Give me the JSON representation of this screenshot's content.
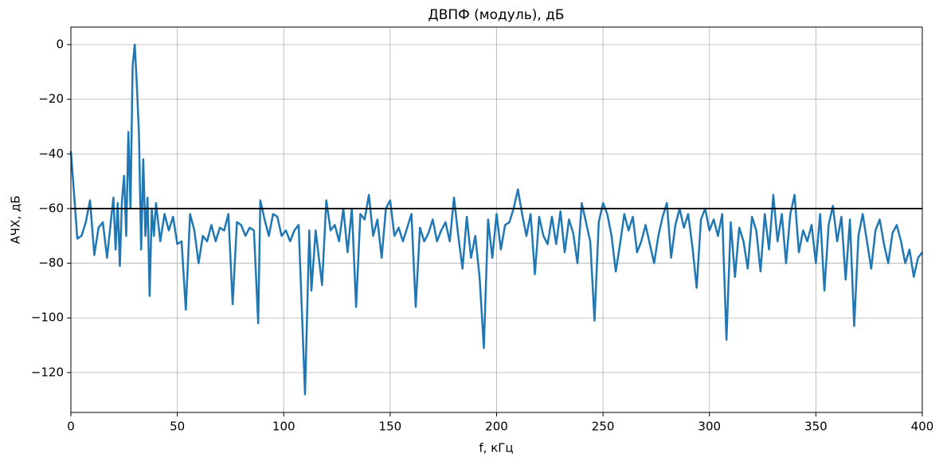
{
  "chart_data": {
    "type": "line",
    "title": "ДВПФ (модуль), дБ",
    "xlabel": "f, кГц",
    "ylabel": "АЧХ, дБ",
    "x": [
      0,
      2,
      3,
      5,
      7,
      9,
      11,
      13,
      15,
      17,
      19,
      20,
      21,
      22,
      23,
      24,
      25,
      26,
      27,
      28,
      29,
      30,
      31,
      32,
      33,
      34,
      35,
      36,
      37,
      38,
      39,
      40,
      42,
      44,
      46,
      48,
      50,
      52,
      54,
      56,
      58,
      60,
      62,
      64,
      66,
      68,
      70,
      72,
      74,
      76,
      78,
      80,
      82,
      84,
      86,
      88,
      89,
      91,
      93,
      95,
      97,
      99,
      101,
      103,
      105,
      107,
      110,
      112,
      113,
      115,
      118,
      120,
      122,
      124,
      126,
      128,
      130,
      132,
      134,
      136,
      138,
      140,
      142,
      144,
      146,
      148,
      150,
      152,
      154,
      156,
      158,
      160,
      162,
      164,
      166,
      168,
      170,
      172,
      174,
      176,
      178,
      180,
      182,
      184,
      186,
      188,
      190,
      192,
      194,
      196,
      198,
      200,
      202,
      204,
      206,
      208,
      210,
      212,
      214,
      216,
      218,
      220,
      222,
      224,
      226,
      228,
      230,
      232,
      234,
      236,
      238,
      240,
      242,
      244,
      246,
      248,
      250,
      252,
      254,
      256,
      258,
      260,
      262,
      264,
      266,
      268,
      270,
      272,
      274,
      276,
      278,
      280,
      282,
      284,
      286,
      288,
      290,
      292,
      294,
      296,
      298,
      300,
      302,
      304,
      306,
      308,
      310,
      312,
      314,
      316,
      318,
      320,
      322,
      324,
      326,
      328,
      330,
      332,
      334,
      336,
      338,
      340,
      342,
      344,
      346,
      348,
      350,
      352,
      354,
      356,
      358,
      360,
      362,
      364,
      366,
      368,
      370,
      372,
      374,
      376,
      378,
      380,
      382,
      384,
      386,
      388,
      390,
      392,
      394,
      396,
      398,
      400
    ],
    "series": [
      {
        "color": "#1f77b4",
        "values": [
          -39,
          -60,
          -71,
          -70,
          -65,
          -57,
          -77,
          -67,
          -65,
          -78,
          -63,
          -56,
          -75,
          -58,
          -81,
          -57,
          -48,
          -70,
          -32,
          -60,
          -8,
          0,
          -15,
          -33,
          -75,
          -42,
          -70,
          -56,
          -92,
          -60,
          -70,
          -58,
          -72,
          -62,
          -68,
          -63,
          -73,
          -72,
          -97,
          -62,
          -68,
          -80,
          -70,
          -72,
          -66,
          -72,
          -67,
          -68,
          -62,
          -95,
          -65,
          -66,
          -70,
          -67,
          -68,
          -102,
          -57,
          -64,
          -70,
          -62,
          -63,
          -70,
          -68,
          -72,
          -68,
          -66,
          -128,
          -68,
          -90,
          -68,
          -88,
          -57,
          -68,
          -66,
          -72,
          -60,
          -76,
          -60,
          -96,
          -62,
          -64,
          -55,
          -70,
          -64,
          -78,
          -60,
          -57,
          -70,
          -67,
          -72,
          -67,
          -62,
          -96,
          -67,
          -72,
          -69,
          -64,
          -72,
          -68,
          -65,
          -72,
          -56,
          -70,
          -82,
          -63,
          -78,
          -70,
          -85,
          -111,
          -64,
          -78,
          -62,
          -75,
          -66,
          -65,
          -60,
          -53,
          -62,
          -70,
          -62,
          -84,
          -63,
          -70,
          -73,
          -63,
          -73,
          -61,
          -76,
          -64,
          -69,
          -80,
          -58,
          -65,
          -72,
          -101,
          -65,
          -58,
          -62,
          -70,
          -83,
          -73,
          -62,
          -68,
          -63,
          -76,
          -72,
          -66,
          -73,
          -80,
          -70,
          -63,
          -58,
          -78,
          -66,
          -60,
          -67,
          -62,
          -74,
          -89,
          -64,
          -60,
          -68,
          -64,
          -70,
          -62,
          -108,
          -65,
          -85,
          -67,
          -72,
          -82,
          -63,
          -68,
          -83,
          -62,
          -75,
          -55,
          -72,
          -62,
          -80,
          -62,
          -55,
          -76,
          -68,
          -72,
          -66,
          -80,
          -62,
          -90,
          -66,
          -59,
          -72,
          -63,
          -86,
          -64,
          -103,
          -70,
          -62,
          -72,
          -82,
          -68,
          -64,
          -73,
          -80,
          -69,
          -66,
          -72,
          -80,
          -75,
          -85,
          -78,
          -76
        ]
      }
    ],
    "hline": {
      "value": -60,
      "color": "#000000"
    },
    "xlim": [
      0,
      400
    ],
    "ylim": [
      -134.6,
      6.4
    ],
    "xticks": [
      0,
      50,
      100,
      150,
      200,
      250,
      300,
      350,
      400
    ],
    "yticks": [
      {
        "value": -120,
        "label": "−120"
      },
      {
        "value": -100,
        "label": "−100"
      },
      {
        "value": -80,
        "label": "−80"
      },
      {
        "value": -60,
        "label": "−60"
      },
      {
        "value": -40,
        "label": "−40"
      },
      {
        "value": -20,
        "label": "−20"
      },
      0
    ],
    "grid": true
  }
}
